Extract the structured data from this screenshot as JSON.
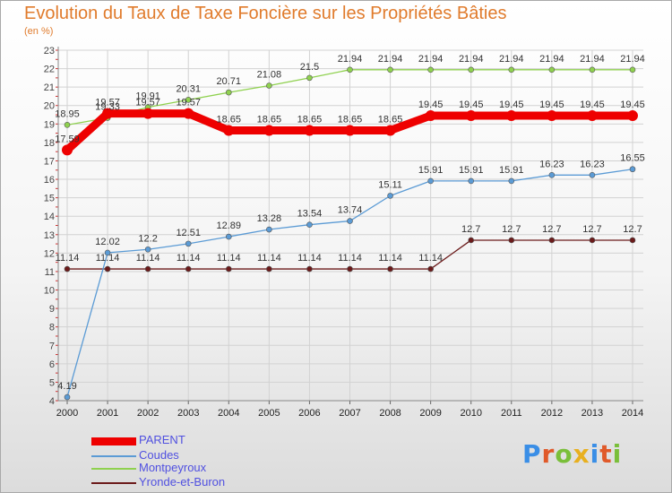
{
  "page": {
    "title": "Evolution du Taux de Taxe Foncière sur les Propriétés Bâties",
    "unit_label": "(en %)",
    "brand": "Proxiti",
    "brand_colors": [
      "#3a8ee6",
      "#e05a2a",
      "#7abf3a",
      "#e8b020",
      "#3a8ee6",
      "#e05a2a",
      "#7abf3a"
    ]
  },
  "chart_data": {
    "type": "line",
    "title": "Evolution du Taux de Taxe Foncière sur les Propriétés Bâties",
    "ylabel": "(en %)",
    "xlabel": "",
    "x": [
      "2000",
      "2001",
      "2002",
      "2003",
      "2004",
      "2005",
      "2006",
      "2007",
      "2008",
      "2009",
      "2010",
      "2011",
      "2012",
      "2013",
      "2014"
    ],
    "ylim": [
      4,
      23
    ],
    "yticks": [
      "4",
      "5",
      "6",
      "7",
      "8",
      "9",
      "10",
      "11",
      "12",
      "13",
      "14",
      "15",
      "16",
      "17",
      "18",
      "19",
      "20",
      "21",
      "22",
      "23"
    ],
    "grid": true,
    "legend_position": "bottom-left",
    "series": [
      {
        "name": "Yronde-et-Buron",
        "color": "#6b1a1a",
        "width": "thin",
        "values": [
          11.14,
          11.14,
          11.14,
          11.14,
          11.14,
          11.14,
          11.14,
          11.14,
          11.14,
          11.14,
          12.7,
          12.7,
          12.7,
          12.7,
          12.7
        ],
        "labels": [
          "11.14",
          "11.14",
          "11.14",
          "11.14",
          "11.14",
          "11.14",
          "11.14",
          "11.14",
          "11.14",
          "11.14",
          "12.7",
          "12.7",
          "12.7",
          "12.7",
          "12.7"
        ]
      },
      {
        "name": "Coudes",
        "color": "#5b9bd5",
        "width": "thin",
        "values": [
          4.19,
          12.02,
          12.2,
          12.51,
          12.89,
          13.28,
          13.54,
          13.74,
          15.11,
          15.91,
          15.91,
          15.91,
          16.23,
          16.23,
          16.55
        ],
        "labels": [
          "4.19",
          "12.02",
          "12.2",
          "12.51",
          "12.89",
          "13.28",
          "13.54",
          "13.74",
          "15.11",
          "15.91",
          "15.91",
          "15.91",
          "16.23",
          "16.23",
          "16.55"
        ]
      },
      {
        "name": "Montpeyroux",
        "color": "#8fd14f",
        "width": "thin",
        "values": [
          18.95,
          19.33,
          19.91,
          20.31,
          20.71,
          21.08,
          21.5,
          21.94,
          21.94,
          21.94,
          21.94,
          21.94,
          21.94,
          21.94,
          21.94
        ],
        "labels": [
          "18.95",
          "19.33",
          "19.91",
          "20.31",
          "20.71",
          "21.08",
          "21.5",
          "21.94",
          "21.94",
          "21.94",
          "21.94",
          "21.94",
          "21.94",
          "21.94",
          "21.94"
        ]
      },
      {
        "name": "PARENT",
        "color": "#ee0000",
        "width": "thick",
        "values": [
          17.59,
          19.57,
          19.57,
          19.57,
          18.65,
          18.65,
          18.65,
          18.65,
          18.65,
          19.45,
          19.45,
          19.45,
          19.45,
          19.45,
          19.45
        ],
        "labels": [
          "17.59",
          "19.57",
          "19.57",
          "19.57",
          "18.65",
          "18.65",
          "18.65",
          "18.65",
          "18.65",
          "19.45",
          "19.45",
          "19.45",
          "19.45",
          "19.45",
          "19.45"
        ]
      }
    ],
    "legend": [
      "PARENT",
      "Coudes",
      "Montpeyroux",
      "Yronde-et-Buron"
    ]
  }
}
